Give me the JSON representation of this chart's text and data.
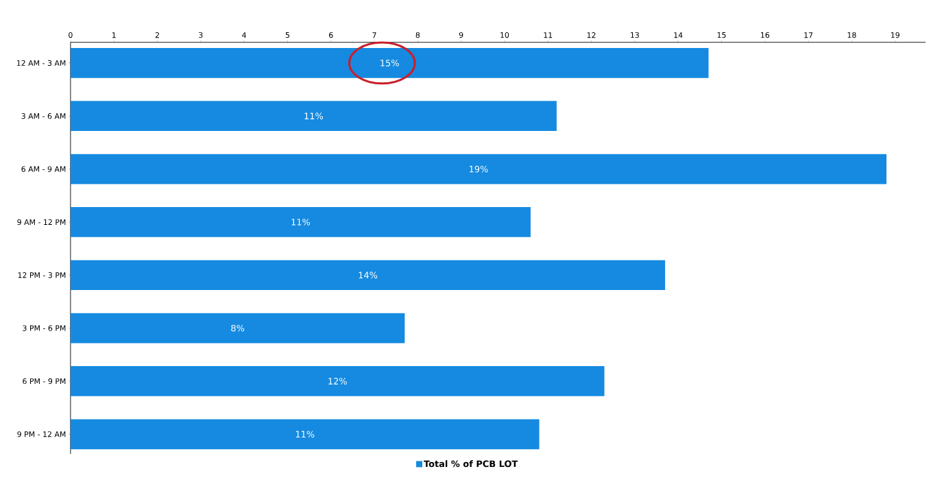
{
  "chart_data": {
    "type": "bar",
    "orientation": "horizontal",
    "categories": [
      "12 AM - 3 AM",
      "3 AM - 6 AM",
      "6 AM - 9 AM",
      "9 AM - 12 PM",
      "12 PM - 3 PM",
      "3 PM - 6 PM",
      "6 PM - 9 PM",
      "9 PM - 12 AM"
    ],
    "series": [
      {
        "name": "Total % of PCB LOT",
        "color": "#158ae0",
        "values": [
          14.7,
          11.2,
          18.8,
          10.6,
          13.7,
          7.7,
          12.3,
          10.8
        ],
        "value_labels": [
          "15%",
          "11%",
          "19%",
          "11%",
          "14%",
          "8%",
          "12%",
          "11%"
        ]
      }
    ],
    "xlim": [
      0,
      19.7
    ],
    "xticks": [
      0,
      1,
      2,
      3,
      4,
      5,
      6,
      7,
      8,
      9,
      10,
      11,
      12,
      13,
      14,
      15,
      16,
      17,
      18,
      19
    ],
    "legend": "bottom"
  }
}
